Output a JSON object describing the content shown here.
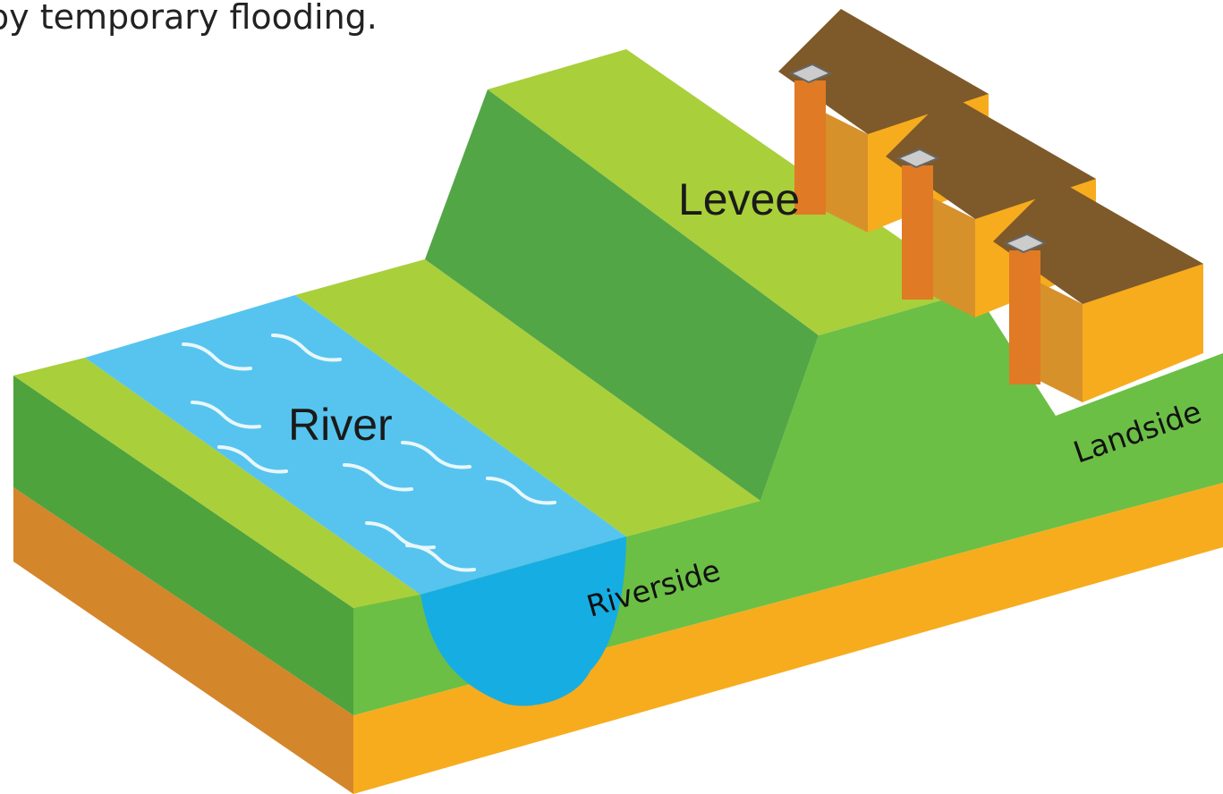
{
  "header": {
    "caption": "by temporary flooding."
  },
  "labels": {
    "levee": "Levee",
    "river": "River",
    "riverside": "Riverside",
    "landside": "Landside"
  }
}
